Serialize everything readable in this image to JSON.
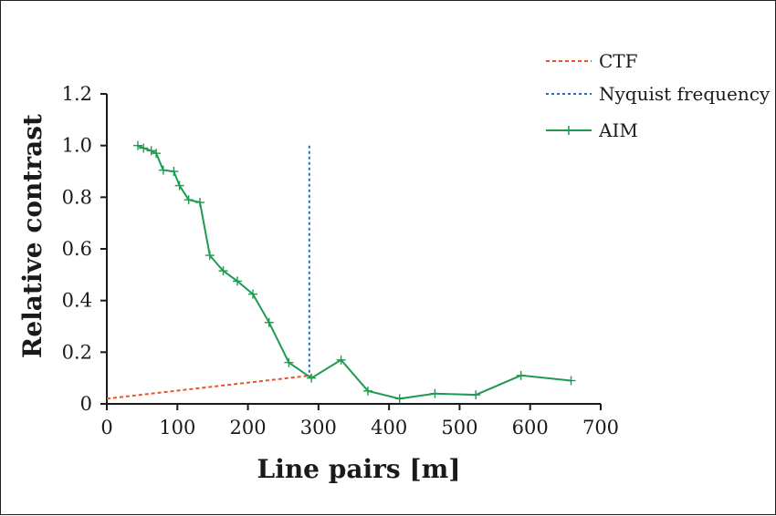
{
  "chart_data": {
    "type": "line",
    "xlabel": "Line pairs [m]",
    "ylabel": "Relative contrast",
    "xlim": [
      0,
      700
    ],
    "ylim": [
      0,
      1.2
    ],
    "x_ticks": [
      "0",
      "100",
      "200",
      "300",
      "400",
      "500",
      "600",
      "700"
    ],
    "y_ticks": [
      "0",
      "0.2",
      "0.4",
      "0.6",
      "0.8",
      "1.0",
      "1.2"
    ],
    "grid": false,
    "legend": "top-right",
    "series": [
      {
        "name": "CTF",
        "color": "#e8532a",
        "style": "dashed",
        "marker": "none",
        "x": [
          0,
          290
        ],
        "y": [
          0.02,
          0.11
        ]
      },
      {
        "name": "Nyquist frequency",
        "color": "#2a6fb6",
        "style": "dotted-vertical",
        "marker": "none",
        "x": [
          287,
          287
        ],
        "y": [
          0.1,
          1.0
        ]
      },
      {
        "name": "AIM",
        "color": "#1f9a4f",
        "style": "solid",
        "marker": "plus",
        "x": [
          44,
          52,
          63,
          70,
          80,
          95,
          103,
          116,
          132,
          146,
          165,
          185,
          207,
          230,
          258,
          290,
          332,
          370,
          415,
          465,
          523,
          587,
          658
        ],
        "y": [
          1.0,
          0.99,
          0.98,
          0.97,
          0.905,
          0.9,
          0.845,
          0.79,
          0.78,
          0.575,
          0.515,
          0.475,
          0.425,
          0.315,
          0.16,
          0.1,
          0.17,
          0.05,
          0.02,
          0.04,
          0.035,
          0.11,
          0.09
        ]
      }
    ]
  }
}
